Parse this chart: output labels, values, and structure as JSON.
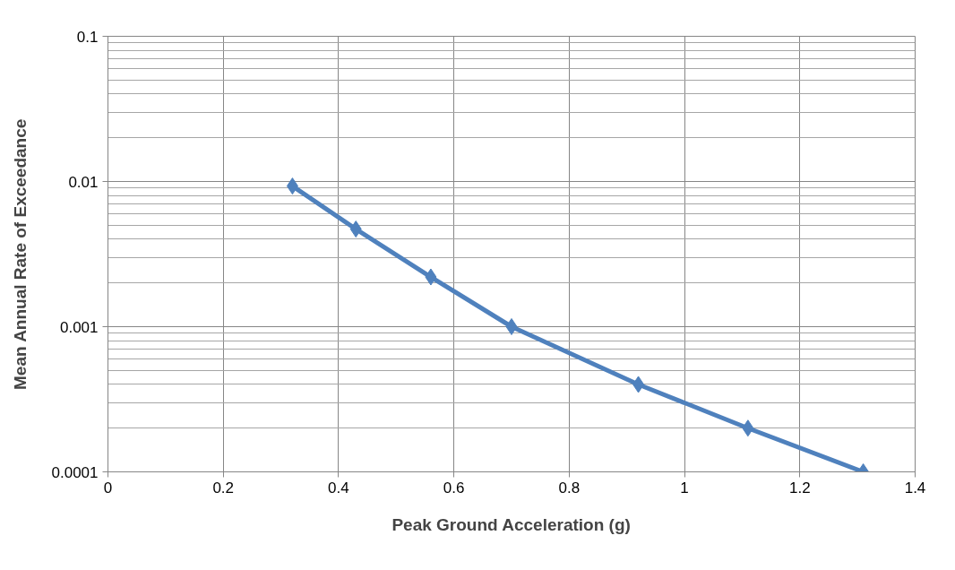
{
  "chart_data": {
    "type": "line",
    "xlabel": "Peak Ground Acceleration (g)",
    "ylabel": "Mean Annual Rate of Exceedance",
    "x": [
      0.32,
      0.43,
      0.56,
      0.7,
      0.92,
      1.11,
      1.31
    ],
    "series": [
      {
        "color": "#4f81bd",
        "values": [
          0.0093,
          0.0047,
          0.0022,
          0.001,
          0.0004,
          0.0002,
          0.0001
        ]
      }
    ],
    "xlim": [
      0,
      1.4
    ],
    "xticks": [
      0,
      0.2,
      0.4,
      0.6,
      0.8,
      1,
      1.2,
      1.4
    ],
    "ylim": [
      0.0001,
      0.1
    ],
    "yticks": [
      0.0001,
      0.001,
      0.01,
      0.1
    ],
    "log": "y",
    "grid": true,
    "marker": "diamond",
    "line_style": "solid"
  }
}
